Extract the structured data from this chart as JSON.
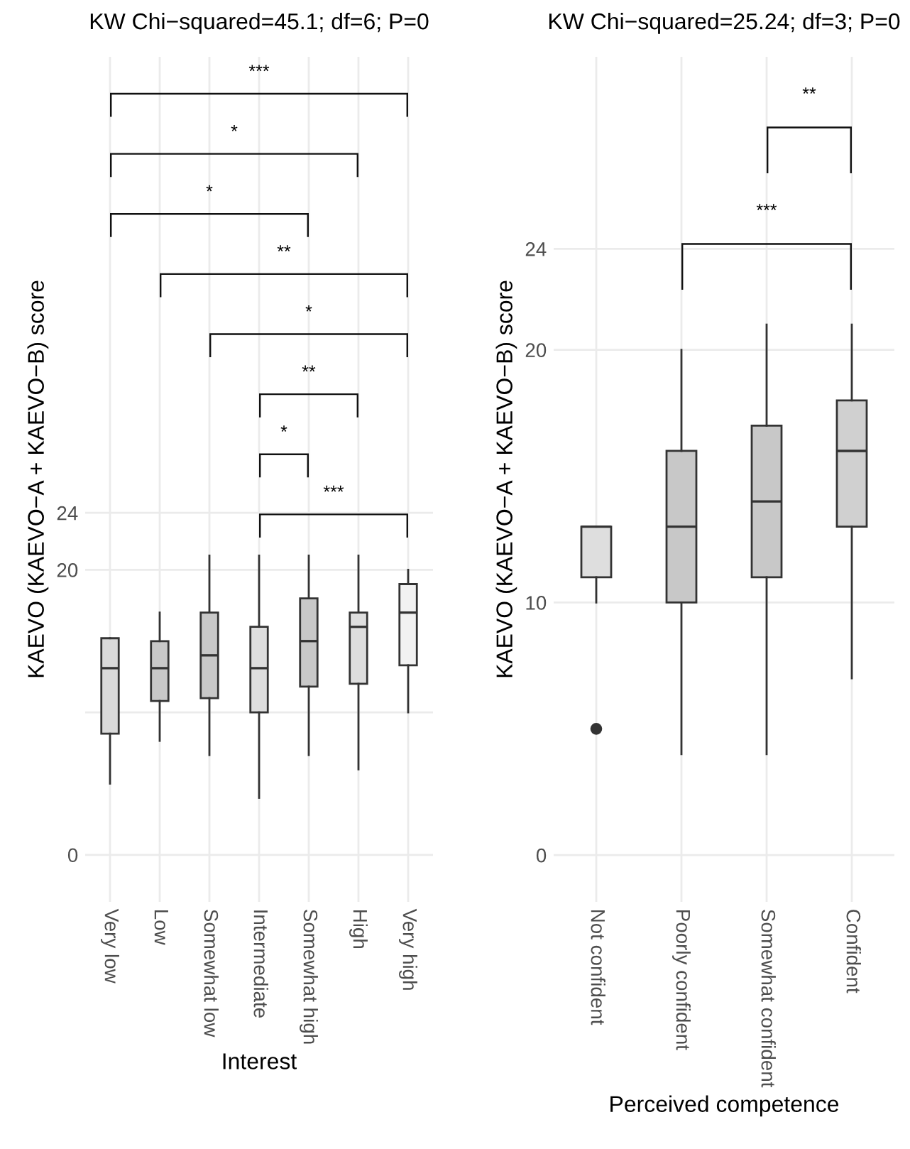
{
  "chart_data": [
    {
      "type": "box",
      "title": "KW Chi−squared=45.1; df=6; P=0",
      "xlabel": "Interest",
      "ylabel": "KAEVO (KAEVO−A + KAEVO−B) score",
      "categories": [
        "Very low",
        "Low",
        "Somewhat low",
        "Intermediate",
        "Somewhat high",
        "High",
        "Very high"
      ],
      "colors": [
        "#d9d9d9",
        "#c8c8c8",
        "#c8c8c8",
        "#dedede",
        "#c8c8c8",
        "#dedede",
        "#f2f2f2"
      ],
      "boxes": [
        {
          "low": 5.0,
          "q1": 8.5,
          "median": 13.1,
          "q3": 15.2,
          "high": 15.2
        },
        {
          "low": 8.0,
          "q1": 10.8,
          "median": 13.1,
          "q3": 15.0,
          "high": 17.0
        },
        {
          "low": 7.0,
          "q1": 11.0,
          "median": 14.0,
          "q3": 17.0,
          "high": 21.0
        },
        {
          "low": 4.0,
          "q1": 10.0,
          "median": 13.1,
          "q3": 16.0,
          "high": 21.0
        },
        {
          "low": 7.0,
          "q1": 11.8,
          "median": 15.0,
          "q3": 18.0,
          "high": 21.0
        },
        {
          "low": 6.0,
          "q1": 12.0,
          "median": 16.0,
          "q3": 17.0,
          "high": 21.0
        },
        {
          "low": 10.0,
          "q1": 13.3,
          "median": 17.0,
          "q3": 19.0,
          "high": 20.0
        }
      ],
      "ylim": [
        -3.3,
        56
      ],
      "yticks": [
        0,
        {
          "value": 10,
          "label": null
        },
        20,
        24
      ],
      "grid": true,
      "annotations": [
        "***",
        "*",
        "*",
        "**",
        "*",
        "**",
        "*",
        "***"
      ]
    },
    {
      "type": "box",
      "title": "KW Chi−squared=25.24; df=3; P=0",
      "xlabel": "Perceived competence",
      "ylabel": "KAEVO (KAEVO−A + KAEVO−B) score",
      "categories": [
        "Not confident",
        "Poorly confident",
        "Somewhat confident",
        "Confident"
      ],
      "colors": [
        "#dedede",
        "#c8c8c8",
        "#c8c8c8",
        "#d0d0d0"
      ],
      "boxes": [
        {
          "low": 10.0,
          "q1": 11.0,
          "median": 13.0,
          "q3": 13.0,
          "high": 13.0,
          "outliers": [
            5.0
          ]
        },
        {
          "low": 4.0,
          "q1": 10.0,
          "median": 13.0,
          "q3": 16.0,
          "high": 20.0
        },
        {
          "low": 4.0,
          "q1": 11.0,
          "median": 14.0,
          "q3": 17.0,
          "high": 21.0
        },
        {
          "low": 7.0,
          "q1": 13.0,
          "median": 16.0,
          "q3": 18.0,
          "high": 21.0
        }
      ],
      "ylim": [
        -1.85,
        31.6
      ],
      "yticks": [
        0,
        10,
        20,
        24
      ],
      "grid": true,
      "annotations": [
        "**",
        "***"
      ]
    }
  ]
}
